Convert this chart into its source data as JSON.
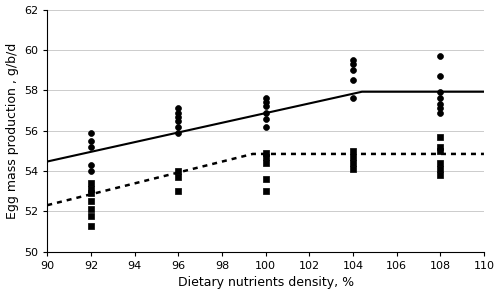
{
  "title": "",
  "xlabel": "Dietary nutrients density, %",
  "ylabel": "Egg mass production , g/b/d",
  "xlim": [
    90,
    110
  ],
  "ylim": [
    50,
    62
  ],
  "xticks": [
    90,
    92,
    94,
    96,
    98,
    100,
    102,
    104,
    106,
    108,
    110
  ],
  "yticks": [
    50,
    52,
    54,
    56,
    58,
    60,
    62
  ],
  "line1": {
    "breakpoint": 104.4,
    "plateau": 57.93,
    "slope": 0.24,
    "marker": "o",
    "linestyle": "-",
    "color": "black"
  },
  "line2": {
    "breakpoint": 99.4,
    "plateau": 54.85,
    "slope": 0.27,
    "marker": "s",
    "linestyle": "dotted",
    "color": "black"
  },
  "scatter1_x": [
    92,
    92,
    92,
    92,
    92,
    96,
    96,
    96,
    96,
    96,
    96,
    100,
    100,
    100,
    100,
    100,
    100,
    104,
    104,
    104,
    104,
    104,
    108,
    108,
    108,
    108,
    108,
    108,
    108
  ],
  "scatter1_y": [
    55.9,
    55.5,
    55.2,
    54.3,
    54.0,
    57.1,
    56.9,
    56.7,
    56.5,
    56.2,
    55.9,
    57.6,
    57.4,
    57.2,
    56.9,
    56.6,
    56.2,
    59.5,
    59.3,
    59.0,
    58.5,
    57.6,
    59.7,
    58.7,
    57.9,
    57.6,
    57.3,
    57.1,
    56.9
  ],
  "scatter2_x": [
    92,
    92,
    92,
    92,
    92,
    92,
    92,
    96,
    96,
    96,
    100,
    100,
    100,
    100,
    100,
    104,
    104,
    104,
    104,
    108,
    108,
    108,
    108,
    108,
    108
  ],
  "scatter2_y": [
    53.4,
    53.1,
    52.9,
    52.5,
    52.1,
    51.8,
    51.3,
    54.0,
    53.7,
    53.0,
    54.9,
    54.7,
    54.4,
    53.6,
    53.0,
    55.0,
    54.7,
    54.4,
    54.1,
    55.7,
    55.2,
    55.0,
    54.4,
    54.1,
    53.8
  ],
  "figsize": [
    5.0,
    2.95
  ],
  "dpi": 100
}
